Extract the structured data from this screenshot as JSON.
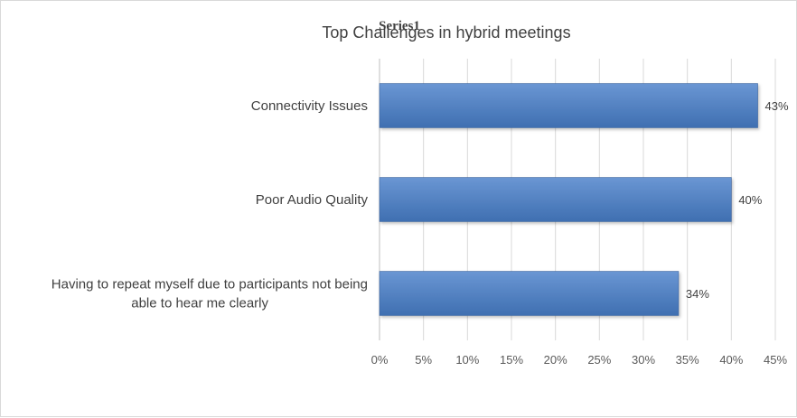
{
  "chart_data": {
    "type": "bar",
    "orientation": "horizontal",
    "title": "Top Challenges in hybrid meetings",
    "series_title_overlay": "Series1",
    "categories": [
      [
        "Connectivity Issues"
      ],
      [
        "Poor Audio Quality"
      ],
      [
        "Having to repeat myself due to participants not being",
        "able to hear me clearly"
      ]
    ],
    "series": [
      {
        "name": "Series1",
        "values": [
          0.43,
          0.4,
          0.34
        ]
      }
    ],
    "data_labels": [
      "43%",
      "40%",
      "34%"
    ],
    "xlim": [
      0,
      0.45
    ],
    "x_ticks": [
      0,
      0.05,
      0.1,
      0.15,
      0.2,
      0.25,
      0.3,
      0.35,
      0.4,
      0.45
    ],
    "x_tick_labels": [
      "0%",
      "5%",
      "10%",
      "15%",
      "20%",
      "25%",
      "30%",
      "35%",
      "40%",
      "45%"
    ],
    "grid": "vertical",
    "legend": "none",
    "colors": {
      "bar_top": "#6a96d3",
      "bar_bottom": "#3f6fb1",
      "bar_edge": "#3a64a0",
      "grid": "#d9d9d9",
      "axis": "#bfbfbf"
    }
  }
}
